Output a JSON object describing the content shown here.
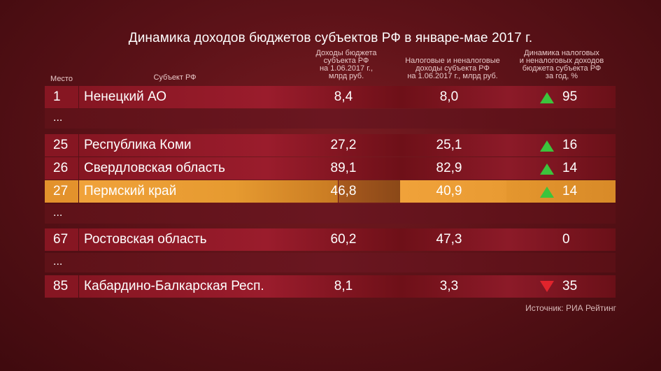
{
  "chart_data": {
    "type": "table",
    "title": "Динамика доходов бюджетов субъектов РФ в январе-мае 2017 г.",
    "columns": {
      "rank": "Место",
      "subject": "Субъект РФ",
      "income": "Доходы бюджета\nсубъекта РФ\nна 1.06.2017 г.,\nмлрд руб.",
      "tax_income": "Налоговые и неналоговые\nдоходы субъекта РФ\nна 1.06.2017 г., млрд руб.",
      "dynamics": "Динамика налоговых\nи неналоговых доходов\nбюджета субъекта РФ\nза год, %"
    },
    "rows": [
      {
        "rank": "1",
        "subject": "Ненецкий АО",
        "income": "8,4",
        "tax_income": "8,0",
        "dynamics": "95",
        "trend": "up",
        "kind": "data"
      },
      {
        "rank": "...",
        "kind": "gap"
      },
      {
        "rank": "25",
        "subject": "Республика Коми",
        "income": "27,2",
        "tax_income": "25,1",
        "dynamics": "16",
        "trend": "up",
        "kind": "data"
      },
      {
        "rank": "26",
        "subject": "Свердловская область",
        "income": "89,1",
        "tax_income": "82,9",
        "dynamics": "14",
        "trend": "up",
        "kind": "data"
      },
      {
        "rank": "27",
        "subject": "Пермский край",
        "income": "46,8",
        "tax_income": "40,9",
        "dynamics": "14",
        "trend": "up",
        "kind": "highlight"
      },
      {
        "rank": "...",
        "kind": "gap"
      },
      {
        "rank": "67",
        "subject": "Ростовская область",
        "income": "60,2",
        "tax_income": "47,3",
        "dynamics": "0",
        "trend": "none",
        "kind": "data"
      },
      {
        "rank": "...",
        "kind": "gap"
      },
      {
        "rank": "85",
        "subject": "Кабардино-Балкарская Респ.",
        "income": "8,1",
        "tax_income": "3,3",
        "dynamics": "35",
        "trend": "down",
        "kind": "data"
      }
    ],
    "source": "Источник: РИА Рейтинг",
    "colors": {
      "row_red": "#8e1828",
      "row_highlight": "#f0a23a",
      "arrow_up": "#3cc43c",
      "arrow_down": "#e0242c"
    }
  }
}
